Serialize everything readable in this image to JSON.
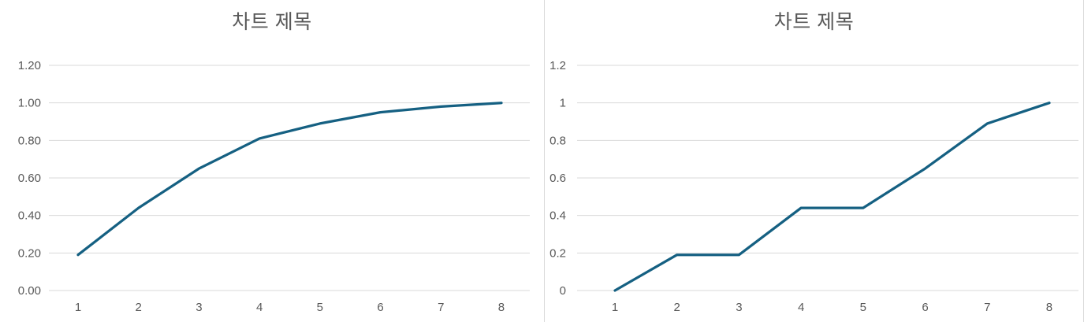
{
  "page": {
    "background_color": "#ffffff",
    "panel_border_color": "#d9d9d9"
  },
  "chart_data": [
    {
      "type": "line",
      "title": "차트 제목",
      "x": [
        1,
        2,
        3,
        4,
        5,
        6,
        7,
        8
      ],
      "values": [
        0.19,
        0.44,
        0.65,
        0.81,
        0.89,
        0.95,
        0.98,
        1.0
      ],
      "ylim": [
        0,
        1.2
      ],
      "y_tick_step": 0.2,
      "y_tick_labels": [
        "0.00",
        "0.20",
        "0.40",
        "0.60",
        "0.80",
        "1.00",
        "1.20"
      ],
      "x_tick_labels": [
        "1",
        "2",
        "3",
        "4",
        "5",
        "6",
        "7",
        "8"
      ],
      "grid": "horizontal",
      "legend": "none",
      "xlabel": "",
      "ylabel": "",
      "line_color": "#156082",
      "gridline_color": "#d9d9d9",
      "tick_label_color": "#595959",
      "title_color": "#595959"
    },
    {
      "type": "line",
      "title": "차트 제목",
      "x": [
        1,
        2,
        3,
        4,
        5,
        6,
        7,
        8
      ],
      "values": [
        0.0,
        0.19,
        0.19,
        0.44,
        0.44,
        0.65,
        0.89,
        1.0
      ],
      "ylim": [
        0,
        1.2
      ],
      "y_tick_step": 0.2,
      "y_tick_labels": [
        "0",
        "0.2",
        "0.4",
        "0.6",
        "0.8",
        "1",
        "1.2"
      ],
      "x_tick_labels": [
        "1",
        "2",
        "3",
        "4",
        "5",
        "6",
        "7",
        "8"
      ],
      "grid": "horizontal",
      "legend": "none",
      "xlabel": "",
      "ylabel": "",
      "line_color": "#156082",
      "gridline_color": "#d9d9d9",
      "tick_label_color": "#595959",
      "title_color": "#595959"
    }
  ]
}
